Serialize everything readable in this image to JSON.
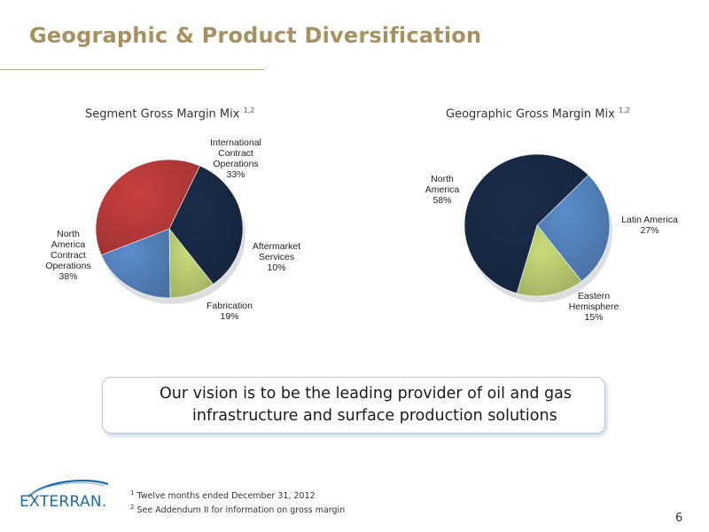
{
  "title": "Geographic & Product Diversification",
  "chart_data": [
    {
      "type": "pie",
      "title": "Segment Gross Margin Mix",
      "title_sup": "1,2",
      "slices": [
        {
          "name": "International Contract Operations",
          "label_lines": [
            "International",
            "Contract",
            "Operations",
            "33%"
          ],
          "value": 33,
          "color": "#1b2d4b"
        },
        {
          "name": "Aftermarket Services",
          "label_lines": [
            "Aftermarket",
            "Services",
            "10%"
          ],
          "value": 10,
          "color": "#c9dc7a"
        },
        {
          "name": "Fabrication",
          "label_lines": [
            "Fabrication",
            "19%"
          ],
          "value": 19,
          "color": "#5b8ccc"
        },
        {
          "name": "North America Contract Operations",
          "label_lines": [
            "North",
            "America",
            "Contract",
            "Operations",
            "38%"
          ],
          "value": 38,
          "color": "#c8403e"
        }
      ]
    },
    {
      "type": "pie",
      "title": "Geographic Gross Margin Mix",
      "title_sup": "1,2",
      "slices": [
        {
          "name": "Latin America",
          "label_lines": [
            "Latin America",
            "27%"
          ],
          "value": 27,
          "color": "#5b8ccc"
        },
        {
          "name": "Eastern Hemisphere",
          "label_lines": [
            "Eastern",
            "Hemisphere",
            "15%"
          ],
          "value": 15,
          "color": "#c9dc7a"
        },
        {
          "name": "North America",
          "label_lines": [
            "North",
            "America",
            "58%"
          ],
          "value": 58,
          "color": "#1b2d4b"
        }
      ]
    }
  ],
  "vision": {
    "line1": "Our vision is to be the leading provider of oil and gas",
    "line2": "infrastructure and surface production solutions"
  },
  "logo": {
    "text": "EXTERRAN."
  },
  "footnotes": {
    "n1_sup": "1",
    "n1": "Twelve months ended December 31, 2012",
    "n2_sup": "2",
    "n2": "See Addendum II for information on gross margin"
  },
  "page_number": "6"
}
